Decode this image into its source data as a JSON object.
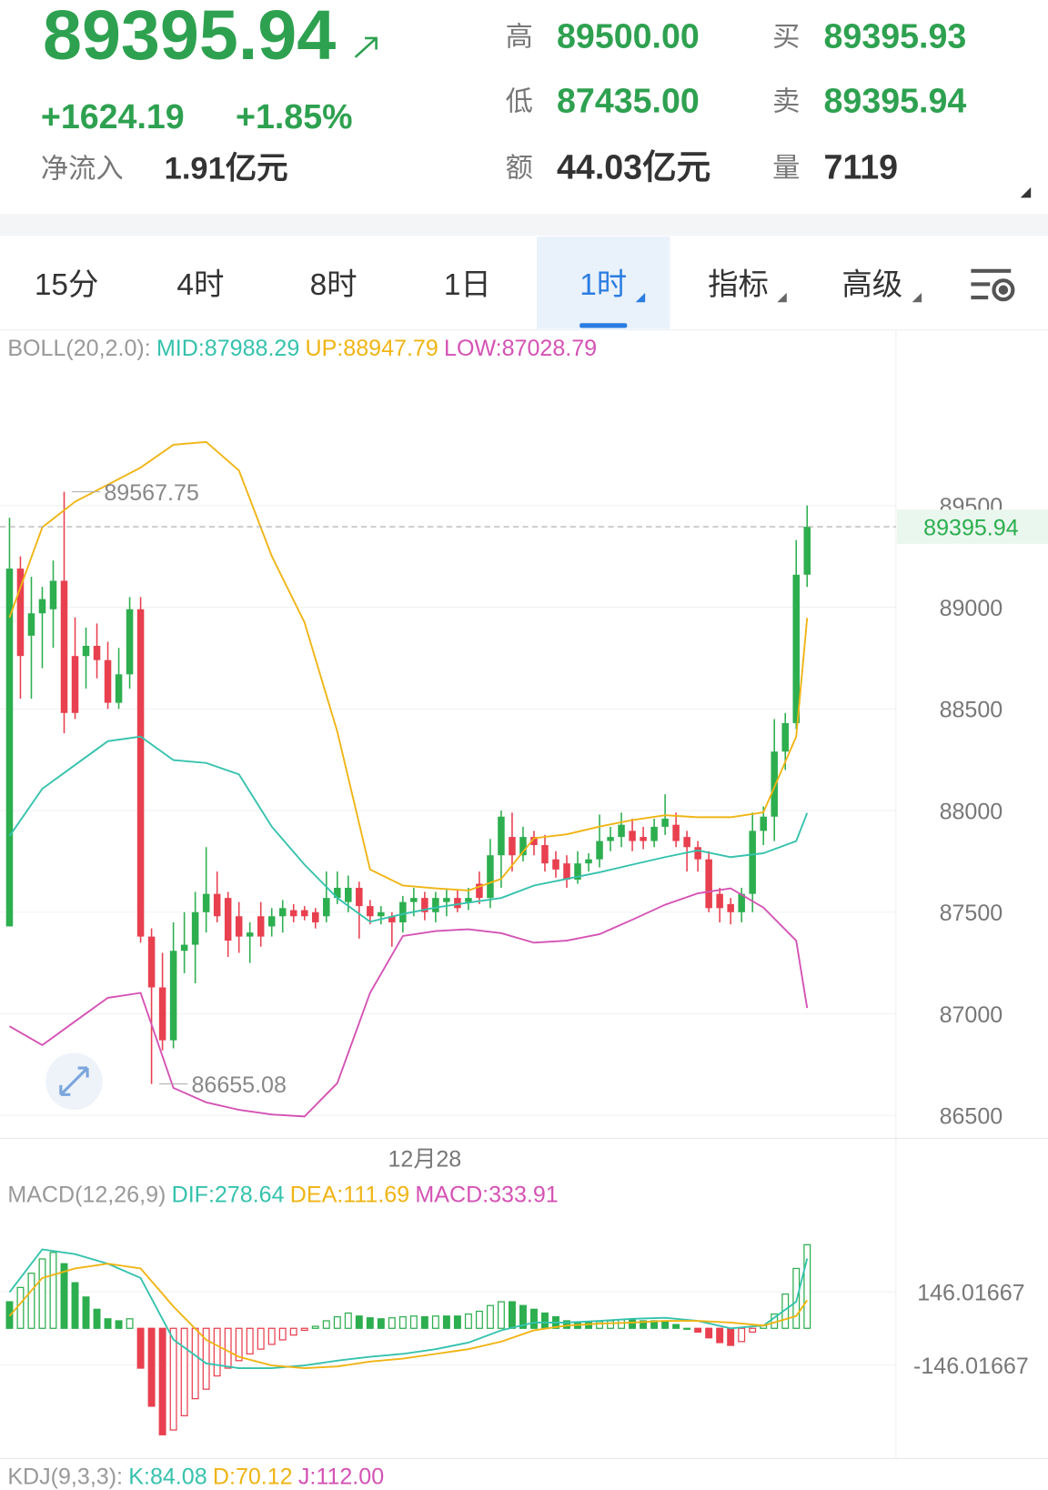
{
  "quote": {
    "price": "89395.94",
    "change": "+1624.19",
    "change_pct": "+1.85%",
    "net_inflow_label": "净流入",
    "net_inflow": "1.91亿元",
    "stats": [
      {
        "label": "高",
        "value": "89500.00",
        "color": "#2ea150"
      },
      {
        "label": "低",
        "value": "87435.00",
        "color": "#2ea150"
      },
      {
        "label": "额",
        "value": "44.03亿元",
        "color": "#333333"
      },
      {
        "label": "买",
        "value": "89395.93",
        "color": "#2ea150"
      },
      {
        "label": "卖",
        "value": "89395.94",
        "color": "#2ea150"
      },
      {
        "label": "量",
        "value": "7119",
        "color": "#333333"
      }
    ]
  },
  "tabs": [
    "15分",
    "4时",
    "8时",
    "1日",
    "1时",
    "指标",
    "高级"
  ],
  "active_tab": 4,
  "chart_data": [
    {
      "type": "candlestick",
      "title": "BOLL(20,2.0):",
      "up_color": "#2dae4f",
      "down_color": "#e8404f",
      "open": [
        87430,
        89190,
        88860,
        88970,
        88990,
        89130,
        88760,
        88760,
        88810,
        88740,
        88530,
        88670,
        88990,
        87380,
        87130,
        86870,
        87310,
        87340,
        87500,
        87590,
        87570,
        87480,
        87380,
        87480,
        87430,
        87480,
        87510,
        87510,
        87500,
        87480,
        87570,
        87550,
        87620,
        87530,
        87480,
        87480,
        87450,
        87550,
        87570,
        87500,
        87550,
        87570,
        87550,
        87640,
        87570,
        87780,
        87870,
        87780,
        87870,
        87830,
        87760,
        87740,
        87660,
        87740,
        87760,
        87850,
        87870,
        87900,
        87870,
        87850,
        87920,
        87930,
        87870,
        87820,
        87760,
        87590,
        87540,
        87500,
        87590,
        87900,
        87970,
        88290,
        88430,
        89160
      ],
      "high": [
        89440,
        89250,
        89150,
        89100,
        89230,
        89567.75,
        88950,
        88900,
        88920,
        88830,
        88800,
        89050,
        89050,
        87420,
        87300,
        87450,
        87500,
        87600,
        87820,
        87700,
        87600,
        87550,
        87450,
        87550,
        87520,
        87560,
        87540,
        87530,
        87520,
        87700,
        87700,
        87680,
        87650,
        87560,
        87530,
        87500,
        87580,
        87620,
        87600,
        87600,
        87610,
        87610,
        87620,
        87700,
        87860,
        88000,
        87990,
        87920,
        87900,
        87880,
        87800,
        87780,
        87800,
        87790,
        87980,
        87920,
        87990,
        87960,
        87920,
        87960,
        88080,
        87990,
        87900,
        87850,
        87800,
        87620,
        87570,
        87620,
        87990,
        88020,
        88450,
        88480,
        89330,
        89500
      ],
      "low": [
        87430,
        88550,
        88550,
        88700,
        88800,
        88380,
        88450,
        88600,
        88650,
        88500,
        88500,
        88600,
        87350,
        86655.08,
        86820,
        86830,
        87200,
        87150,
        87400,
        87450,
        87280,
        87300,
        87250,
        87330,
        87380,
        87400,
        87450,
        87460,
        87420,
        87450,
        87540,
        87500,
        87370,
        87440,
        87440,
        87330,
        87400,
        87480,
        87460,
        87450,
        87480,
        87500,
        87510,
        87540,
        87520,
        87620,
        87700,
        87750,
        87780,
        87700,
        87670,
        87620,
        87640,
        87700,
        87720,
        87800,
        87820,
        87800,
        87810,
        87820,
        87880,
        87820,
        87700,
        87700,
        87500,
        87450,
        87440,
        87450,
        87500,
        87830,
        87850,
        88200,
        88400,
        89100
      ],
      "close": [
        89190,
        88760,
        88970,
        89040,
        89130,
        88480,
        88480,
        88810,
        88740,
        88530,
        88670,
        88990,
        87380,
        87130,
        86870,
        87310,
        87340,
        87500,
        87590,
        87480,
        87360,
        87380,
        87400,
        87380,
        87480,
        87520,
        87480,
        87480,
        87450,
        87570,
        87620,
        87620,
        87530,
        87480,
        87500,
        87450,
        87550,
        87570,
        87500,
        87570,
        87570,
        87520,
        87570,
        87570,
        87780,
        87970,
        87780,
        87870,
        87830,
        87740,
        87710,
        87660,
        87740,
        87760,
        87850,
        87870,
        87930,
        87850,
        87850,
        87920,
        87960,
        87850,
        87820,
        87760,
        87520,
        87520,
        87500,
        87590,
        87900,
        87970,
        88290,
        88430,
        89160,
        89395.94
      ],
      "series": [
        {
          "name": "MID:87988.29",
          "color": "#35c2ad",
          "x": [
            0,
            3,
            6,
            9,
            12,
            15,
            18,
            21,
            24,
            27,
            30,
            33,
            36,
            39,
            42,
            45,
            48,
            51,
            54,
            57,
            60,
            63,
            66,
            69,
            72,
            73
          ],
          "values": [
            87874,
            88107,
            88224,
            88341,
            88364,
            88248,
            88234,
            88178,
            87921,
            87734,
            87570,
            87453,
            87491,
            87523,
            87547,
            87570,
            87631,
            87664,
            87696,
            87734,
            87771,
            87804,
            87771,
            87790,
            87850,
            87988.29
          ]
        },
        {
          "name": "UP:88947.79",
          "color": "#f0b414",
          "x": [
            0,
            3,
            6,
            9,
            12,
            15,
            18,
            21,
            24,
            27,
            30,
            33,
            36,
            39,
            42,
            45,
            48,
            51,
            54,
            57,
            60,
            63,
            66,
            69,
            72,
            73
          ],
          "values": [
            88949,
            89393,
            89519,
            89603,
            89687,
            89799,
            89813,
            89673,
            89252,
            88925,
            88388,
            87710,
            87631,
            87617,
            87607,
            87664,
            87864,
            87883,
            87921,
            87953,
            87977,
            87967,
            87967,
            87991,
            88364,
            88947.79
          ]
        },
        {
          "name": "LOW:87028.79",
          "color": "#d452b4",
          "x": [
            0,
            3,
            6,
            9,
            12,
            15,
            18,
            21,
            24,
            27,
            30,
            33,
            36,
            39,
            42,
            45,
            48,
            51,
            54,
            57,
            60,
            63,
            66,
            69,
            72,
            73
          ],
          "values": [
            86939,
            86846,
            86963,
            87079,
            87103,
            86636,
            86565,
            86528,
            86505,
            86495,
            86659,
            87103,
            87383,
            87407,
            87416,
            87397,
            87350,
            87360,
            87392,
            87463,
            87537,
            87593,
            87617,
            87523,
            87360,
            87028.79
          ]
        }
      ],
      "xlim": [
        -0.87,
        81.13
      ],
      "xticks": [
        {
          "value": 38,
          "label": "12月28"
        }
      ],
      "ylim": [
        86390,
        90150
      ],
      "yticks": [
        89500,
        89000,
        88500,
        88000,
        87500,
        87000,
        86500
      ],
      "grid": true
    },
    {
      "type": "macd",
      "title": "MACD(12,26,9)",
      "positive_color": "#2dae4f",
      "negative_color": "#e8404f",
      "series": [
        {
          "name": "DIF:278.64",
          "color": "#35c2ad",
          "x": [
            0,
            3,
            6,
            9,
            12,
            15,
            18,
            21,
            24,
            27,
            30,
            33,
            36,
            39,
            42,
            45,
            48,
            51,
            54,
            57,
            60,
            63,
            66,
            69,
            72,
            73
          ],
          "values": [
            144,
            315,
            296,
            258,
            201,
            -45,
            -140,
            -159,
            -159,
            -148,
            -129,
            -114,
            -102,
            -83,
            -57,
            -8,
            23,
            23,
            30,
            38,
            42,
            30,
            0,
            11,
            106,
            278.64
          ]
        },
        {
          "name": "DEA:111.69",
          "color": "#f0b414",
          "x": [
            0,
            3,
            6,
            9,
            12,
            15,
            18,
            21,
            24,
            27,
            30,
            33,
            36,
            39,
            42,
            45,
            48,
            51,
            54,
            57,
            60,
            63,
            66,
            69,
            72,
            73
          ],
          "values": [
            49,
            201,
            239,
            258,
            239,
            87,
            -46,
            -114,
            -148,
            -159,
            -152,
            -133,
            -121,
            -102,
            -83,
            -53,
            -8,
            11,
            19,
            23,
            30,
            30,
            23,
            11,
            49,
            111.69
          ]
        },
        {
          "name": "MACD:333.91",
          "color": "#d452b4",
          "bars": true,
          "values": [
            106,
            163,
            220,
            277,
            303,
            258,
            182,
            125,
            76,
            38,
            30,
            38,
            -159,
            -311,
            -425,
            -406,
            -349,
            -281,
            -243,
            -190,
            -159,
            -129,
            -102,
            -83,
            -64,
            -46,
            -27,
            -8,
            8,
            30,
            46,
            61,
            49,
            42,
            38,
            42,
            46,
            49,
            46,
            49,
            49,
            49,
            57,
            68,
            91,
            106,
            106,
            91,
            76,
            61,
            46,
            30,
            23,
            23,
            27,
            30,
            34,
            34,
            30,
            30,
            27,
            15,
            0,
            -15,
            -38,
            -57,
            -68,
            -53,
            -15,
            11,
            57,
            137,
            239,
            333.91
          ]
        }
      ],
      "xlim": [
        -0.87,
        81.13
      ],
      "ylim": [
        -500,
        450
      ],
      "yticks": [
        146.01667,
        -146.01667
      ],
      "grid": true
    }
  ],
  "kdj": {
    "title": "KDJ(9,3,3):",
    "series": [
      {
        "name": "K:84.08",
        "color": "#35c2ad"
      },
      {
        "name": "D:70.12",
        "color": "#f0b414"
      },
      {
        "name": "J:112.00",
        "color": "#d452b4"
      }
    ]
  }
}
